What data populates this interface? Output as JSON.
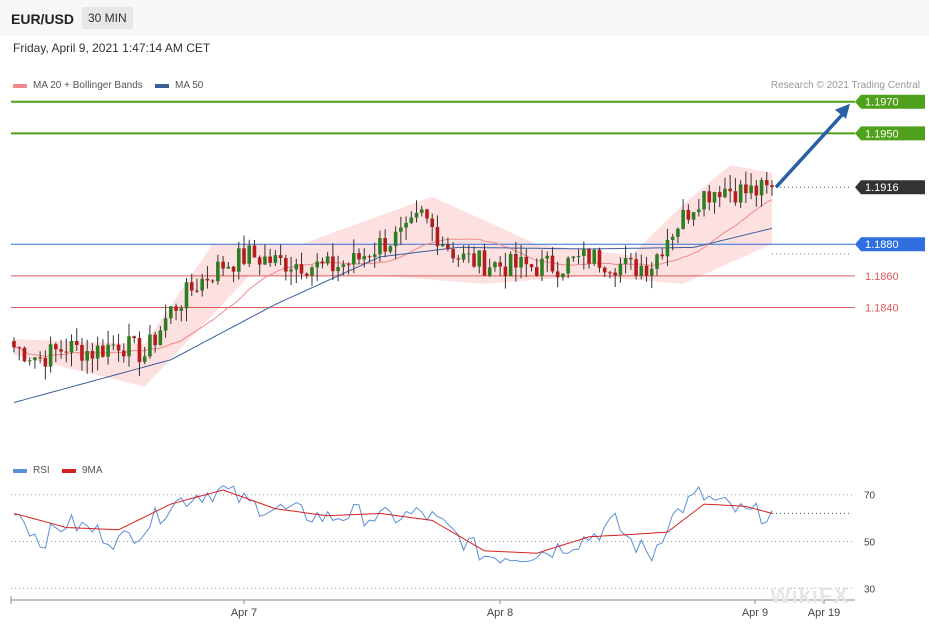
{
  "header": {
    "symbol": "EUR/USD",
    "timeframe": "30 MIN",
    "datetime": "Friday, April 9, 2021 1:47:14 AM CET",
    "credit": "Research © 2021 Trading Central"
  },
  "legend_main": [
    {
      "label": "MA 20 + Bollinger Bands",
      "color": "#f08a8a"
    },
    {
      "label": "MA 50",
      "color": "#3b5f9a"
    }
  ],
  "legend_rsi": [
    {
      "label": "RSI",
      "color": "#5b8fd6"
    },
    {
      "label": "9MA",
      "color": "#d42020"
    }
  ],
  "watermark": "WikiFX",
  "colors": {
    "resistance": "#4fa01a",
    "pivot": "#2f6fe0",
    "support": "#e05a5a",
    "last": "#333333",
    "bull": "#2e7d22",
    "bear": "#b51c1c",
    "band": "#fde0e0",
    "arrow": "#2a5fa8"
  },
  "chart_data": [
    {
      "type": "candlestick",
      "title": "EUR/USD 30 MIN",
      "x_ticks": [
        "Apr 7",
        "Apr 8",
        "Apr 9",
        "Apr 19"
      ],
      "ylim": [
        1.175,
        1.1985
      ],
      "levels": [
        {
          "value": 1.197,
          "label": "1.1970",
          "kind": "resistance"
        },
        {
          "value": 1.195,
          "label": "1.1950",
          "kind": "resistance"
        },
        {
          "value": 1.1916,
          "label": "1.1916",
          "kind": "last"
        },
        {
          "value": 1.188,
          "label": "1.1880",
          "kind": "pivot"
        },
        {
          "value": 1.186,
          "label": "1.1860",
          "kind": "support"
        },
        {
          "value": 1.184,
          "label": "1.1840",
          "kind": "support"
        }
      ],
      "anchors": [
        [
          0,
          1.1815
        ],
        [
          5,
          1.1808
        ],
        [
          10,
          1.1815
        ],
        [
          15,
          1.1812
        ],
        [
          20,
          1.1818
        ],
        [
          25,
          1.181
        ],
        [
          30,
          1.1838
        ],
        [
          35,
          1.1855
        ],
        [
          40,
          1.1867
        ],
        [
          45,
          1.1873
        ],
        [
          50,
          1.1869
        ],
        [
          55,
          1.1868
        ],
        [
          60,
          1.1865
        ],
        [
          65,
          1.1869
        ],
        [
          70,
          1.188
        ],
        [
          75,
          1.1886
        ],
        [
          78,
          1.1898
        ],
        [
          80,
          1.189
        ],
        [
          85,
          1.1872
        ],
        [
          90,
          1.1868
        ],
        [
          95,
          1.1866
        ],
        [
          100,
          1.1866
        ],
        [
          105,
          1.1867
        ],
        [
          110,
          1.1872
        ],
        [
          115,
          1.1868
        ],
        [
          118,
          1.1865
        ],
        [
          122,
          1.1868
        ],
        [
          125,
          1.1885
        ],
        [
          128,
          1.1897
        ],
        [
          131,
          1.191
        ],
        [
          135,
          1.1916
        ],
        [
          140,
          1.1913
        ],
        [
          145,
          1.1914
        ]
      ],
      "ma50": [
        [
          0,
          1.178
        ],
        [
          30,
          1.1807
        ],
        [
          50,
          1.1842
        ],
        [
          70,
          1.1872
        ],
        [
          85,
          1.1878
        ],
        [
          110,
          1.1877
        ],
        [
          130,
          1.1878
        ],
        [
          145,
          1.189
        ]
      ],
      "bollinger": {
        "upper": [
          [
            0,
            1.182
          ],
          [
            25,
            1.1817
          ],
          [
            38,
            1.188
          ],
          [
            55,
            1.188
          ],
          [
            80,
            1.191
          ],
          [
            100,
            1.188
          ],
          [
            118,
            1.1873
          ],
          [
            128,
            1.1905
          ],
          [
            137,
            1.193
          ],
          [
            145,
            1.1925
          ]
        ],
        "lower": [
          [
            0,
            1.181
          ],
          [
            25,
            1.179
          ],
          [
            45,
            1.186
          ],
          [
            70,
            1.186
          ],
          [
            90,
            1.1855
          ],
          [
            110,
            1.186
          ],
          [
            128,
            1.1855
          ],
          [
            145,
            1.188
          ]
        ]
      },
      "forecast_target": 1.197
    },
    {
      "type": "line",
      "title": "RSI",
      "ylim": [
        25,
        75
      ],
      "y_ticks": [
        70,
        50,
        30
      ],
      "series": [
        {
          "name": "RSI",
          "anchors": [
            [
              0,
              65
            ],
            [
              5,
              50
            ],
            [
              10,
              58
            ],
            [
              15,
              55
            ],
            [
              20,
              50
            ],
            [
              25,
              56
            ],
            [
              30,
              66
            ],
            [
              35,
              70
            ],
            [
              40,
              72
            ],
            [
              45,
              66
            ],
            [
              50,
              64
            ],
            [
              55,
              62
            ],
            [
              60,
              60
            ],
            [
              65,
              62
            ],
            [
              70,
              60
            ],
            [
              75,
              61
            ],
            [
              78,
              62
            ],
            [
              80,
              60
            ],
            [
              85,
              52
            ],
            [
              90,
              44
            ],
            [
              95,
              44
            ],
            [
              100,
              45
            ],
            [
              105,
              48
            ],
            [
              110,
              52
            ],
            [
              115,
              58
            ],
            [
              118,
              50
            ],
            [
              122,
              44
            ],
            [
              125,
              58
            ],
            [
              128,
              65
            ],
            [
              131,
              70
            ],
            [
              135,
              66
            ],
            [
              140,
              62
            ],
            [
              145,
              62
            ]
          ]
        },
        {
          "name": "9MA",
          "anchors": [
            [
              0,
              62
            ],
            [
              10,
              56
            ],
            [
              20,
              55
            ],
            [
              30,
              66
            ],
            [
              40,
              72
            ],
            [
              50,
              64
            ],
            [
              60,
              61
            ],
            [
              70,
              62
            ],
            [
              80,
              59
            ],
            [
              90,
              46
            ],
            [
              100,
              45
            ],
            [
              110,
              52
            ],
            [
              118,
              53
            ],
            [
              125,
              54
            ],
            [
              132,
              66
            ],
            [
              140,
              65
            ],
            [
              145,
              62
            ]
          ]
        }
      ]
    }
  ]
}
